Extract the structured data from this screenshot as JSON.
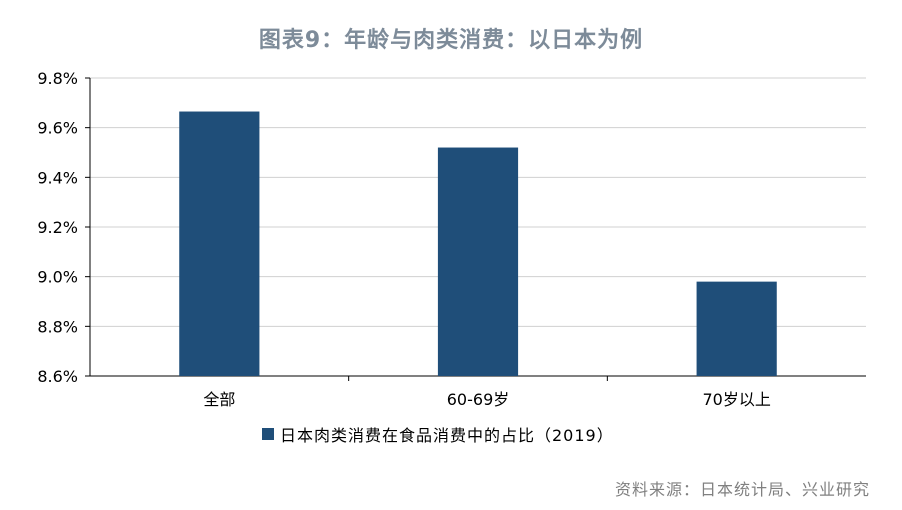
{
  "title": "图表9：年龄与肉类消费：以日本为例",
  "source": "资料来源：日本统计局、兴业研究",
  "chart_data": {
    "type": "bar",
    "categories": [
      "全部",
      "60-69岁",
      "70岁以上"
    ],
    "series": [
      {
        "name": "日本肉类消费在食品消费中的占比（2019）",
        "values": [
          9.665,
          9.52,
          8.98
        ],
        "color": "#1f4e79"
      }
    ],
    "ylim": [
      8.6,
      9.8
    ],
    "yticks": [
      8.6,
      8.8,
      9.0,
      9.2,
      9.4,
      9.6,
      9.8
    ],
    "ytick_labels": [
      "8.6%",
      "8.8%",
      "9.0%",
      "9.2%",
      "9.4%",
      "9.6%",
      "9.8%"
    ],
    "grid": true,
    "legend_position": "bottom-center"
  }
}
